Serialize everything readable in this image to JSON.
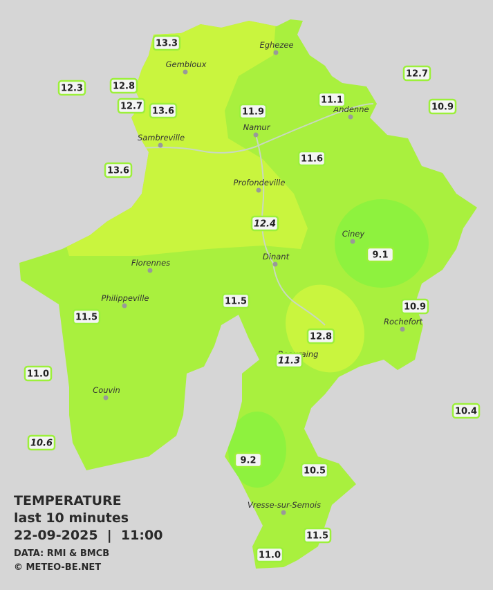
{
  "title": {
    "line1": "TEMPERATURE",
    "line2": "last 10 minutes",
    "line3": "22-09-2025  |  11:00",
    "source": "DATA: RMI & BMCB",
    "copyright": "© METEO-BE.NET"
  },
  "cities": [
    {
      "name": "Eghezee"
    },
    {
      "name": "Gembloux"
    },
    {
      "name": "Andenne"
    },
    {
      "name": "Namur"
    },
    {
      "name": "Sambreville"
    },
    {
      "name": "Profondeville"
    },
    {
      "name": "Ciney"
    },
    {
      "name": "Dinant"
    },
    {
      "name": "Florennes"
    },
    {
      "name": "Philippeville"
    },
    {
      "name": "Rochefort"
    },
    {
      "name": "Beauraing"
    },
    {
      "name": "Couvin"
    },
    {
      "name": "Vresse-sur-Semois"
    }
  ],
  "stations": [
    {
      "value": "13.3"
    },
    {
      "value": "12.3"
    },
    {
      "value": "12.8"
    },
    {
      "value": "12.7"
    },
    {
      "value": "13.6"
    },
    {
      "value": "13.6"
    },
    {
      "value": "11.9"
    },
    {
      "value": "11.1"
    },
    {
      "value": "12.7"
    },
    {
      "value": "10.9"
    },
    {
      "value": "11.6"
    },
    {
      "value": "12.4",
      "italic": true
    },
    {
      "value": "9.1"
    },
    {
      "value": "11.5"
    },
    {
      "value": "10.9"
    },
    {
      "value": "11.5"
    },
    {
      "value": "12.8"
    },
    {
      "value": "11.3",
      "italic": true
    },
    {
      "value": "11.0"
    },
    {
      "value": "10.6",
      "italic": true
    },
    {
      "value": "10.4"
    },
    {
      "value": "9.2"
    },
    {
      "value": "10.5"
    },
    {
      "value": "11.5"
    },
    {
      "value": "11.0"
    }
  ]
}
